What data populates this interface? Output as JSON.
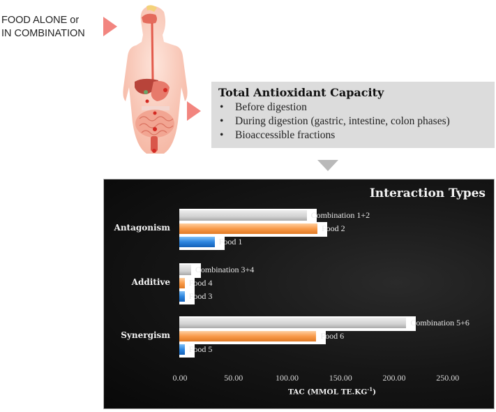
{
  "input_label": {
    "line1": "FOOD ALONE or",
    "line2": "IN COMBINATION"
  },
  "illustration": "human-digestive-system",
  "tac_box": {
    "title": "Total Antioxidant Capacity",
    "items": [
      "Before digestion",
      "During digestion (gastric, intestine, colon phases)",
      "Bioaccessible fractions"
    ],
    "bullet": "•"
  },
  "colors": {
    "arrow_right": "#f2857f",
    "arrow_down": "#b9b9b9",
    "tac_box_bg": "#dcdcdc",
    "panel_bg": "#111111",
    "gray_bar": "#d2d2d2",
    "orange_bar": "#f99b4a",
    "blue_bar": "#2d86e0"
  },
  "chart_data": {
    "type": "bar",
    "orientation": "horizontal",
    "title": "Interaction Types",
    "xlabel": "TAC (MMOL TE.KG-1)",
    "xlabel_main": "TAC (MMOL TE.KG",
    "xlabel_sup": "-1",
    "xlabel_close": ")",
    "ylabel": "",
    "xlim": [
      0,
      250
    ],
    "x_ticks": [
      "0.00",
      "50.00",
      "100.00",
      "150.00",
      "200.00",
      "250.00"
    ],
    "grid": false,
    "legend": "none (bars labeled directly)",
    "categories": [
      "Antagonism",
      "Additive",
      "Synergism"
    ],
    "groups": [
      {
        "category": "Antagonism",
        "bars": [
          {
            "label": "Combination 1+2",
            "value": 119,
            "color": "gray"
          },
          {
            "label": "Food 2",
            "value": 129,
            "color": "orange"
          },
          {
            "label": "Food 1",
            "value": 33,
            "color": "blue"
          }
        ]
      },
      {
        "category": "Additive",
        "bars": [
          {
            "label": "Combination 3+4",
            "value": 11,
            "color": "gray"
          },
          {
            "label": "Food 4",
            "value": 5,
            "color": "orange"
          },
          {
            "label": "Food 3",
            "value": 5,
            "color": "blue"
          }
        ]
      },
      {
        "category": "Synergism",
        "bars": [
          {
            "label": "Combination 5+6",
            "value": 212,
            "color": "gray"
          },
          {
            "label": "Food 6",
            "value": 128,
            "color": "orange"
          },
          {
            "label": "Food 5",
            "value": 5,
            "color": "blue"
          }
        ]
      }
    ]
  }
}
